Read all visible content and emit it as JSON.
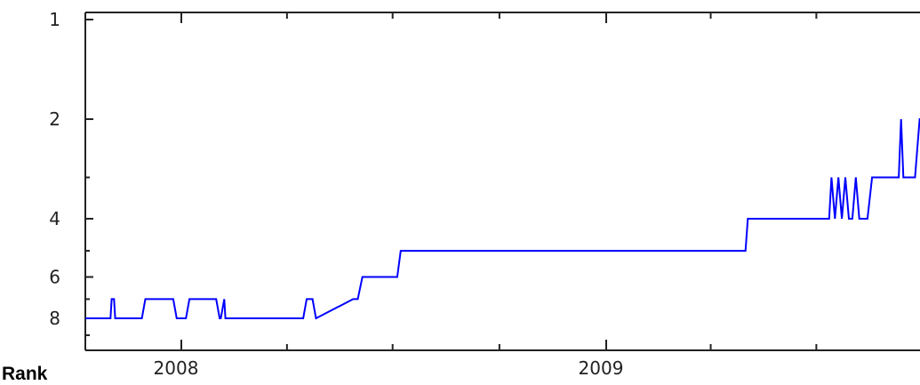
{
  "chart_data": {
    "type": "line",
    "title": "",
    "xlabel": "",
    "ylabel": "Rank",
    "y_scale": "log",
    "y_inverted": true,
    "xlim": [
      "2007-10-01",
      "2009-10-01"
    ],
    "ylim": [
      1,
      9
    ],
    "grid": false,
    "x_tick_labels": [
      "2008",
      "2009"
    ],
    "y_tick_labels": [
      "1",
      "2",
      "4",
      "6",
      "8"
    ],
    "line_color": "#0000ff",
    "series": [
      {
        "x": [
          "2007-10-01",
          "2007-11-01",
          "2007-11-02",
          "2007-11-04",
          "2007-11-05",
          "2007-11-28",
          "2007-12-01",
          "2007-12-25",
          "2007-12-28",
          "2008-01-05",
          "2008-01-08",
          "2008-01-31",
          "2008-02-03",
          "2008-02-04",
          "2008-02-07",
          "2008-02-08",
          "2008-02-11",
          "2008-04-15",
          "2008-04-18",
          "2008-04-23",
          "2008-04-26",
          "2008-05-28",
          "2008-06-01",
          "2008-06-05",
          "2008-06-07",
          "2008-07-05",
          "2008-07-08",
          "2008-07-11",
          "2008-07-14",
          "2009-05-01",
          "2009-05-03",
          "2009-07-12",
          "2009-07-14",
          "2009-07-17",
          "2009-07-20",
          "2009-07-23",
          "2009-07-26",
          "2009-07-29",
          "2009-08-01",
          "2009-08-04",
          "2009-08-07",
          "2009-08-14",
          "2009-08-18",
          "2009-09-10",
          "2009-09-12",
          "2009-09-14",
          "2009-09-24",
          "2009-09-28",
          "2009-10-01"
        ],
        "y": [
          8,
          8,
          7,
          7,
          8,
          8,
          7,
          7,
          8,
          8,
          7,
          7,
          8,
          8,
          7,
          8,
          8,
          8,
          7,
          7,
          8,
          7,
          7,
          6,
          6,
          6,
          5,
          5,
          5,
          5,
          4,
          4,
          3,
          4,
          3,
          4,
          3,
          4,
          4,
          3,
          4,
          4,
          3,
          3,
          2,
          3,
          3,
          2,
          2
        ]
      }
    ]
  }
}
